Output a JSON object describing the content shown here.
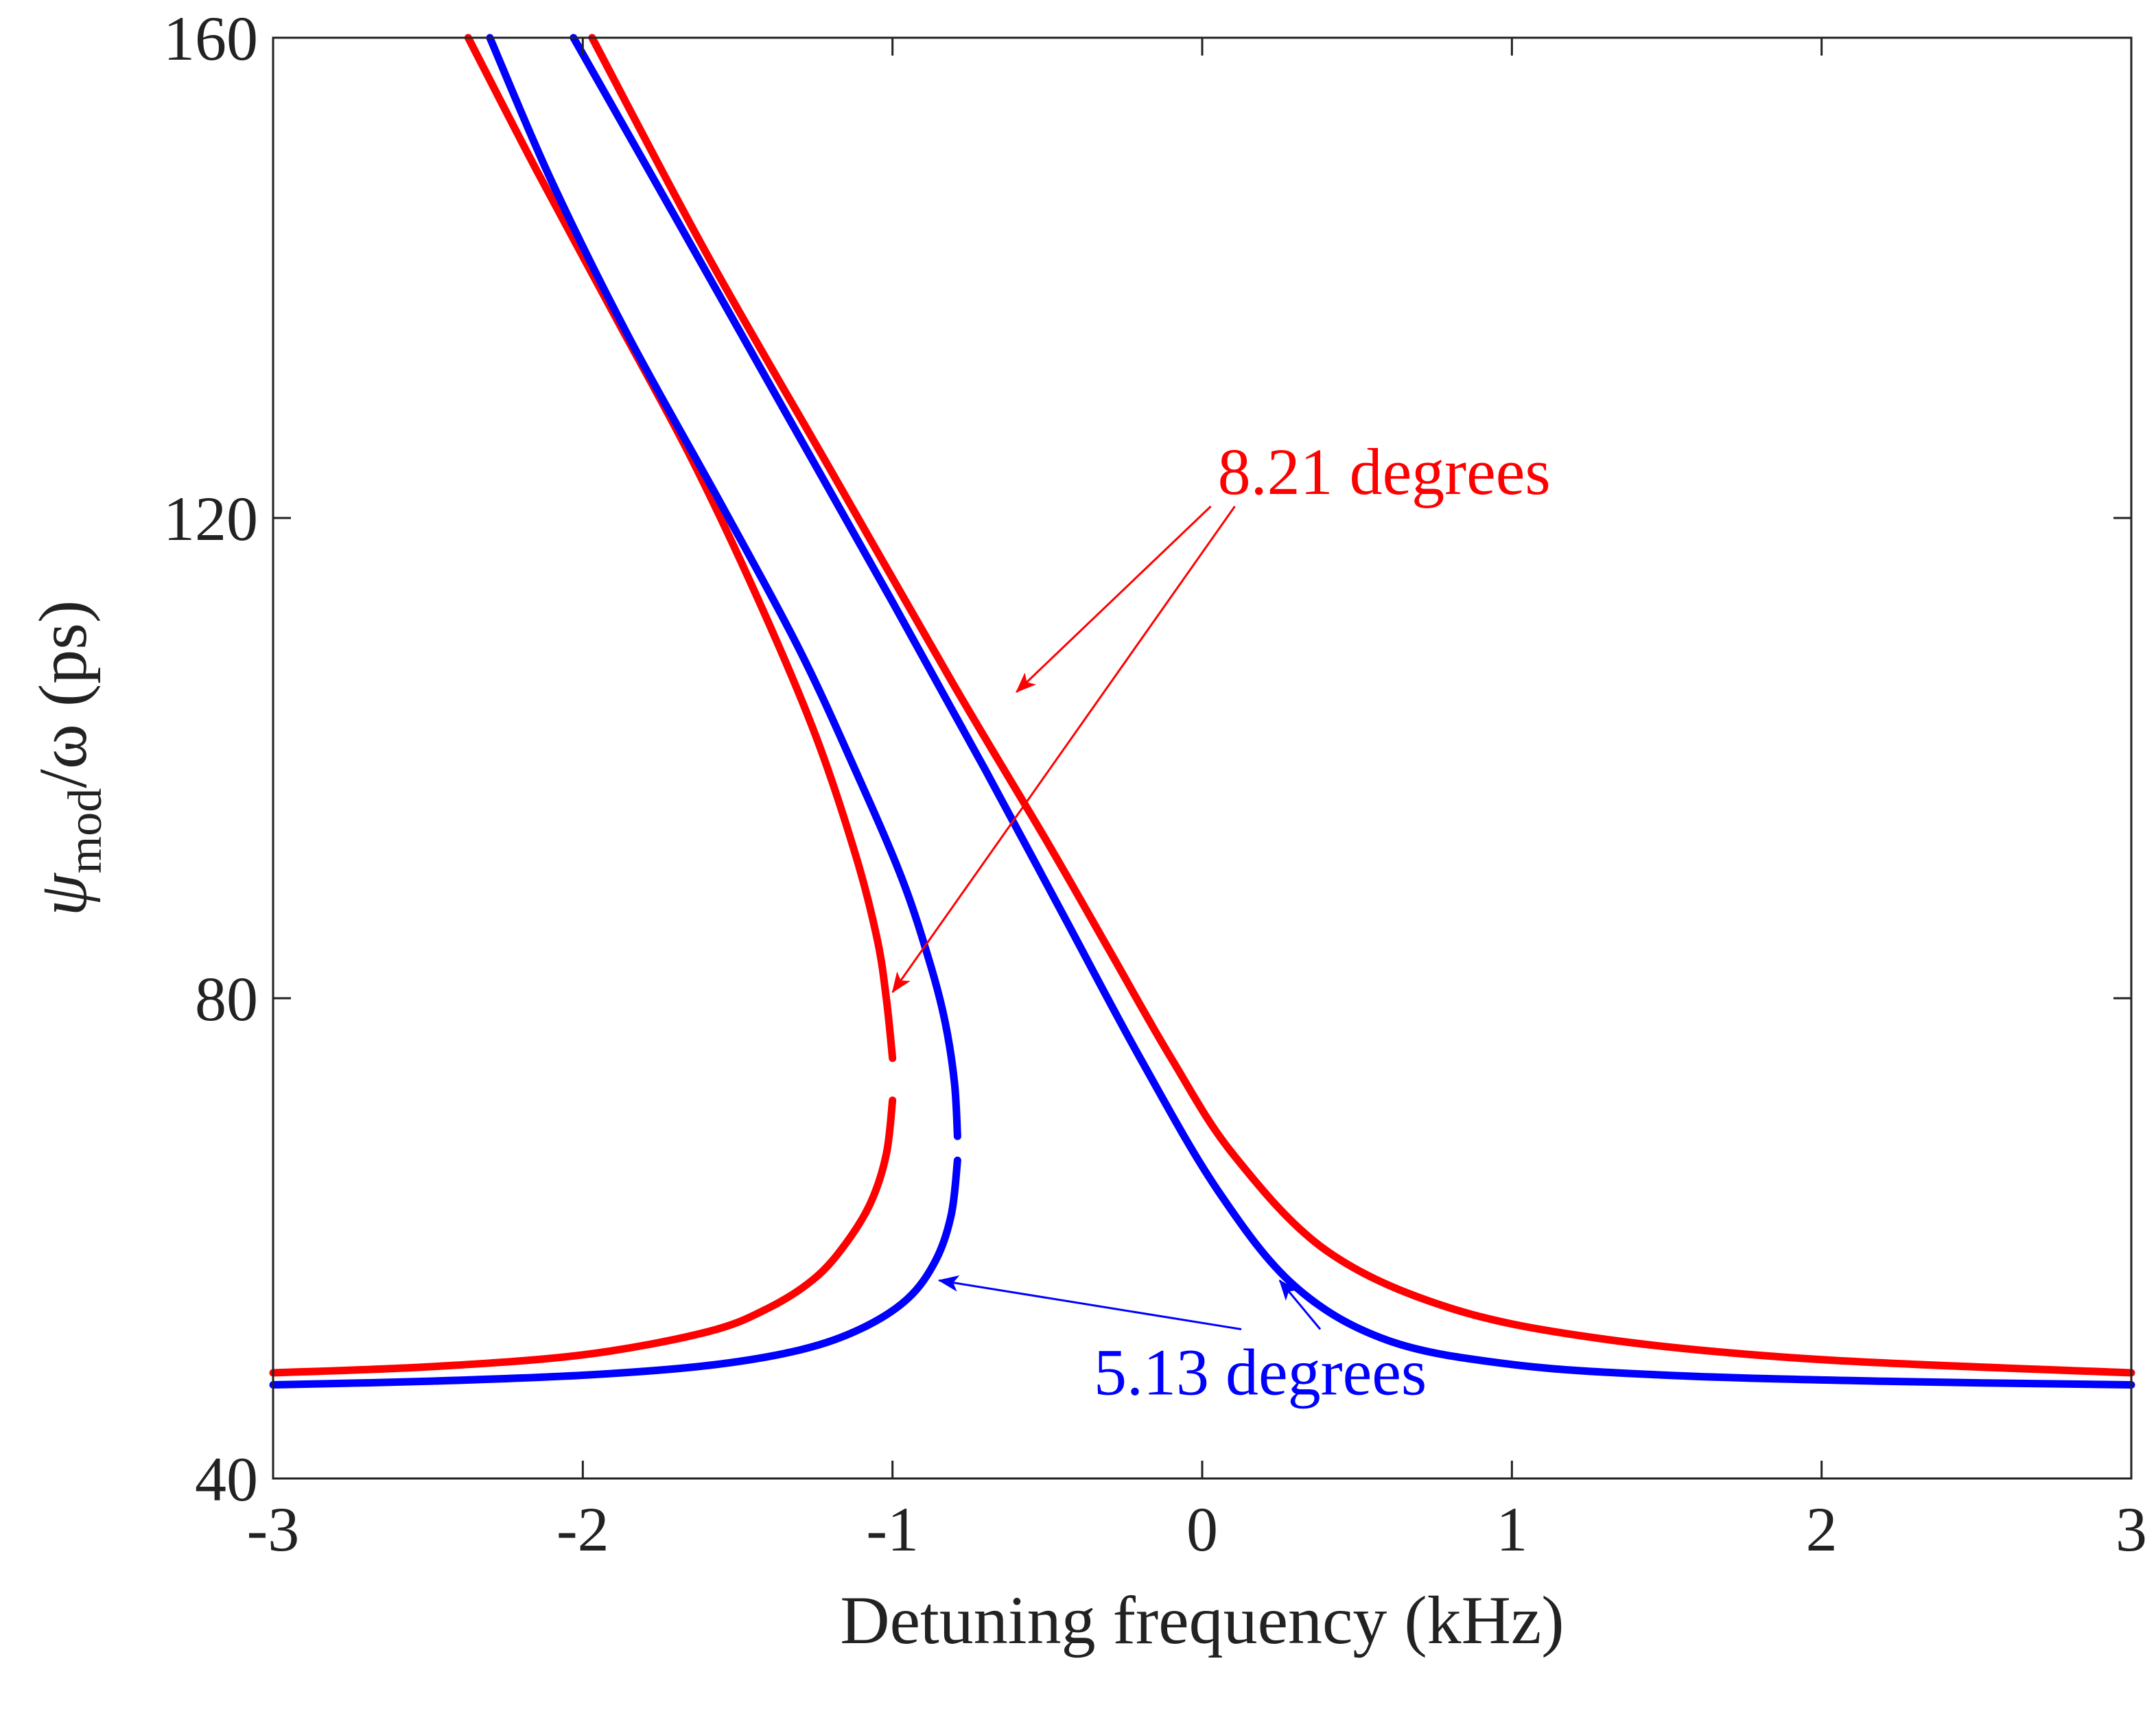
{
  "chart_data": {
    "type": "line",
    "title": "",
    "xlabel": "Detuning frequency (kHz)",
    "ylabel": {
      "symbol": "ψ",
      "subscript": "mod",
      "suffix": "/ω (ps)"
    },
    "xlim": [
      -3,
      3
    ],
    "ylim": [
      40,
      160
    ],
    "xticks": [
      "-3",
      "-2",
      "-1",
      "0",
      "1",
      "2",
      "3"
    ],
    "yticks": [
      "40",
      "80",
      "120",
      "160"
    ],
    "grid": false,
    "series": [
      {
        "name": "8.21 degrees",
        "color": "#ff0000",
        "lower_branch": {
          "x": [
            -3.0,
            -2.5,
            -2.0,
            -1.6,
            -1.4,
            -1.25,
            -1.15,
            -1.07,
            -1.02,
            -1.0
          ],
          "y": [
            48.8,
            49.3,
            50.3,
            52.2,
            54.2,
            56.7,
            59.6,
            63.0,
            67.0,
            71.5
          ]
        },
        "upper_branch_left": {
          "x": [
            -1.0,
            -1.02,
            -1.05,
            -1.12,
            -1.25,
            -1.43,
            -1.65,
            -1.9,
            -2.15,
            -2.37
          ],
          "y": [
            75.0,
            80.0,
            85.0,
            92.0,
            102.0,
            113.0,
            125.0,
            137.0,
            149.0,
            160.0
          ]
        },
        "right_branch": {
          "x": [
            -1.97,
            -1.6,
            -1.2,
            -0.8,
            -0.5,
            -0.3,
            -0.1,
            0.1,
            0.4,
            0.8,
            1.3,
            2.0,
            3.0
          ],
          "y": [
            160.0,
            142.0,
            124.0,
            106.0,
            93.0,
            84.0,
            75.0,
            67.0,
            59.0,
            54.2,
            51.6,
            49.9,
            48.8
          ]
        }
      },
      {
        "name": "5.13 degrees",
        "color": "#0000ff",
        "lower_branch": {
          "x": [
            -3.0,
            -2.5,
            -2.0,
            -1.6,
            -1.3,
            -1.1,
            -0.95,
            -0.86,
            -0.81,
            -0.79
          ],
          "y": [
            47.8,
            48.1,
            48.6,
            49.4,
            50.7,
            52.5,
            55.0,
            58.2,
            62.0,
            66.5
          ]
        },
        "upper_branch_left": {
          "x": [
            -0.79,
            -0.8,
            -0.83,
            -0.88,
            -0.97,
            -1.12,
            -1.3,
            -1.55,
            -1.85,
            -2.1,
            -2.3
          ],
          "y": [
            68.5,
            73.0,
            78.0,
            83.0,
            90.0,
            99.0,
            109.0,
            121.0,
            135.0,
            148.0,
            160.0
          ]
        },
        "right_branch": {
          "x": [
            -2.03,
            -1.7,
            -1.35,
            -1.0,
            -0.7,
            -0.45,
            -0.2,
            0.05,
            0.3,
            0.6,
            1.0,
            1.5,
            2.2,
            3.0
          ],
          "y": [
            160.0,
            145.0,
            129.0,
            113.0,
            99.0,
            87.0,
            75.0,
            64.0,
            56.0,
            51.5,
            49.5,
            48.6,
            48.1,
            47.8
          ]
        }
      }
    ],
    "annotations": [
      {
        "text": "8.21 degrees",
        "color": "#ff0000",
        "anchor": [
          0.05,
          122.0
        ],
        "arrows_to": [
          [
            -0.6,
            105.5
          ],
          [
            -1.0,
            80.5
          ]
        ]
      },
      {
        "text": "5.13 degrees",
        "color": "#0000ff",
        "anchor": [
          -0.35,
          47.0
        ],
        "arrows_to": [
          [
            -0.85,
            56.5
          ],
          [
            0.25,
            56.5
          ]
        ]
      }
    ]
  }
}
